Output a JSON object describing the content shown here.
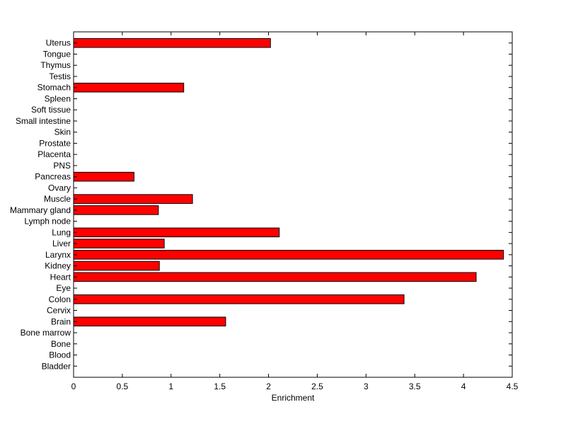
{
  "chart_data": {
    "type": "bar",
    "orientation": "horizontal",
    "title": "",
    "xlabel": "Enrichment",
    "ylabel": "",
    "xlim": [
      0,
      4.5
    ],
    "xticks": [
      0,
      0.5,
      1,
      1.5,
      2,
      2.5,
      3,
      3.5,
      4,
      4.5
    ],
    "xtick_labels": [
      "0",
      "0.5",
      "1",
      "1.5",
      "2",
      "2.5",
      "3",
      "3.5",
      "4",
      "4.5"
    ],
    "grid": false,
    "legend": "none",
    "bar_color": "#ff0000",
    "bar_edge_color": "#000000",
    "categories": [
      "Bladder",
      "Blood",
      "Bone",
      "Bone marrow",
      "Brain",
      "Cervix",
      "Colon",
      "Eye",
      "Heart",
      "Kidney",
      "Larynx",
      "Liver",
      "Lung",
      "Lymph node",
      "Mammary gland",
      "Muscle",
      "Ovary",
      "Pancreas",
      "PNS",
      "Placenta",
      "Prostate",
      "Skin",
      "Small intestine",
      "Soft tissue",
      "Spleen",
      "Stomach",
      "Testis",
      "Thymus",
      "Tongue",
      "Uterus"
    ],
    "values": [
      0,
      0,
      0,
      0,
      1.56,
      0,
      3.39,
      0,
      4.13,
      0.88,
      4.41,
      0.93,
      2.11,
      0,
      0.87,
      1.22,
      0,
      0.62,
      0,
      0,
      0,
      0,
      0,
      0,
      0,
      1.13,
      0,
      0,
      0,
      2.02
    ]
  }
}
